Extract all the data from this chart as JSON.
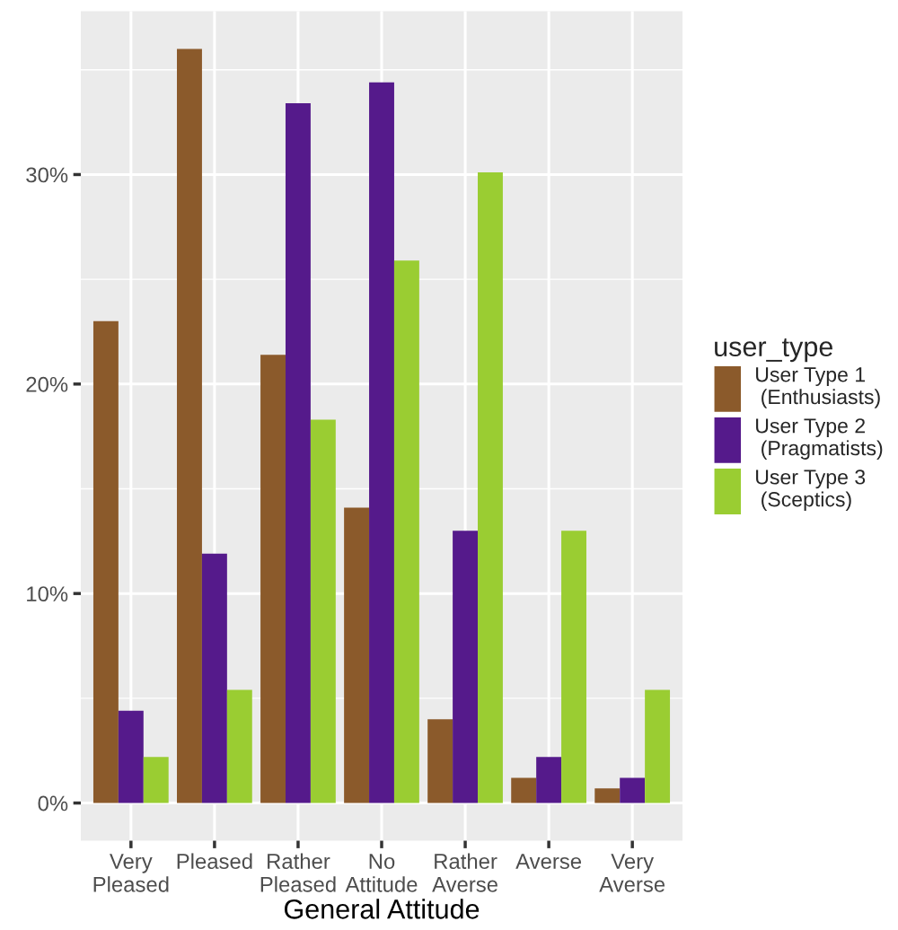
{
  "chart_data": {
    "type": "bar",
    "xlabel": "General Attitude",
    "legend_title": "user_type",
    "categories": [
      "Very\nPleased",
      "Pleased",
      "Rather\nPleased",
      "No\nAttitude",
      "Rather\nAverse",
      "Averse",
      "Very\nAverse"
    ],
    "series": [
      {
        "name": "User Type 1\n (Enthusiasts)",
        "color": "#8b5a2b",
        "values": [
          23.0,
          36.0,
          21.4,
          14.1,
          4.0,
          1.2,
          0.7
        ]
      },
      {
        "name": "User Type 2\n (Pragmatists)",
        "color": "#551a8b",
        "values": [
          4.4,
          11.9,
          33.4,
          34.4,
          13.0,
          2.2,
          1.2
        ]
      },
      {
        "name": "User Type 3\n (Sceptics)",
        "color": "#9acd32",
        "values": [
          2.2,
          5.4,
          18.3,
          25.9,
          30.1,
          13.0,
          5.4
        ]
      }
    ],
    "ylim": [
      -1.8,
      37.8
    ],
    "yticks": [
      {
        "value": 0,
        "label": "0%"
      },
      {
        "value": 10,
        "label": "10%"
      },
      {
        "value": 20,
        "label": "20%"
      },
      {
        "value": 30,
        "label": "30%"
      }
    ],
    "grid": true,
    "legend": "right"
  }
}
